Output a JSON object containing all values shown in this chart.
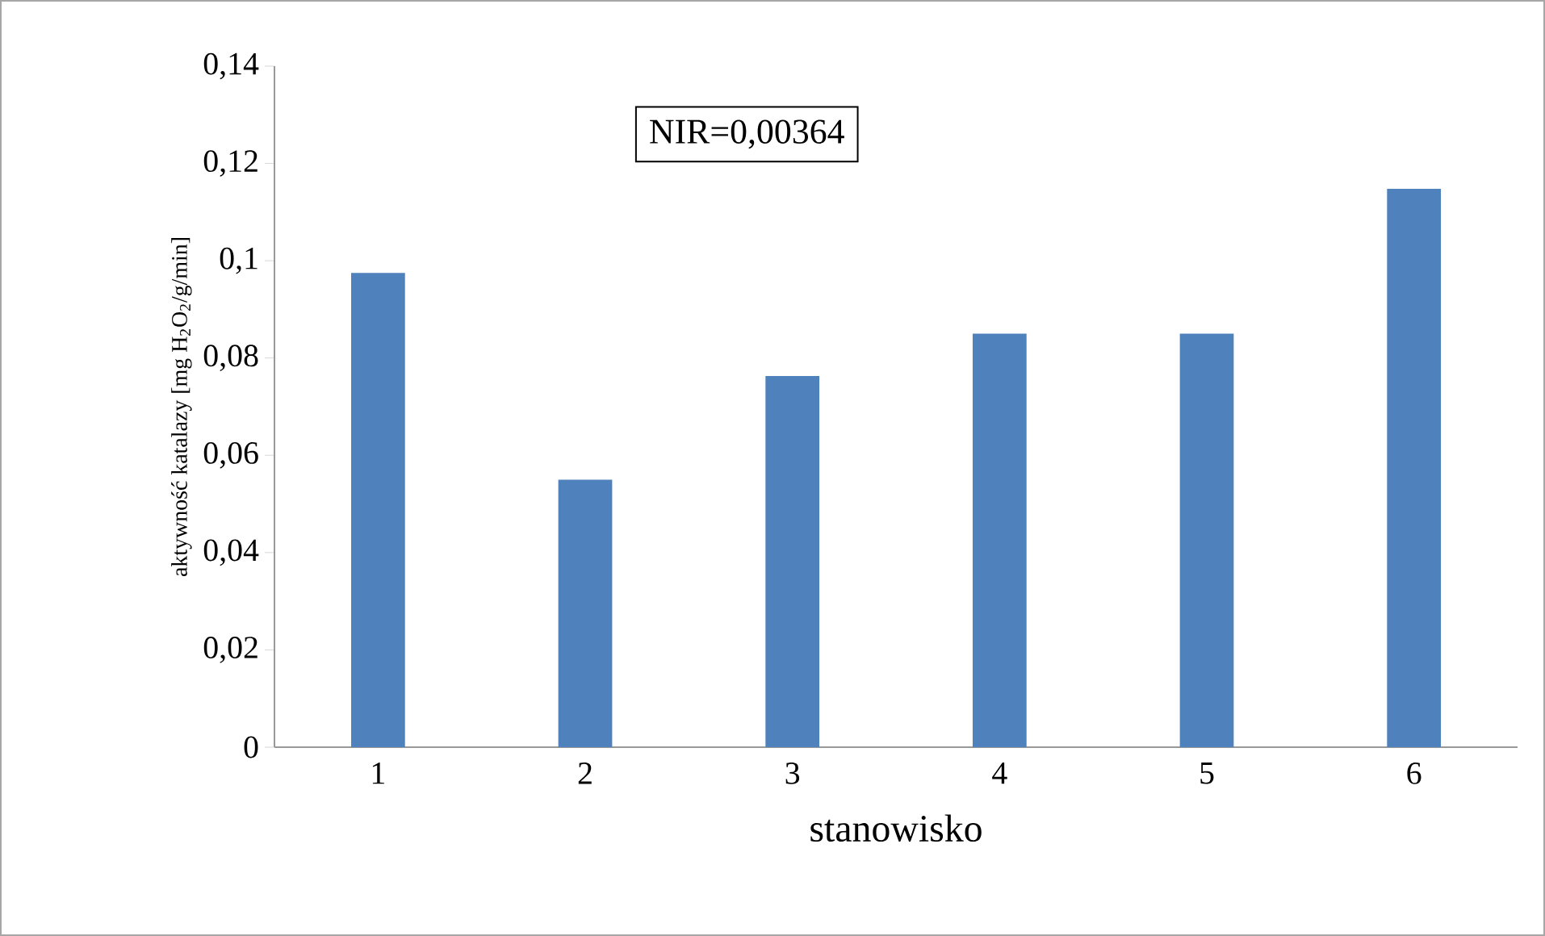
{
  "chart_data": {
    "type": "bar",
    "xlabel": "stanowisko",
    "ylabel": "aktywność katalazy [mg H$_{2}$O$_{2}$/g/min]",
    "annotations": [
      "NIR=0,00364"
    ],
    "categories": [
      "1",
      "2",
      "3",
      "4",
      "5",
      "6"
    ],
    "values": [
      0.0975,
      0.055,
      0.0763,
      0.085,
      0.085,
      0.1148
    ],
    "color": "#4f81bd",
    "ylim": [
      0,
      0.14
    ],
    "yticks": [
      0,
      {
        "value": 0.02,
        "label": "0,02"
      },
      {
        "value": 0.04,
        "label": "0,04"
      },
      {
        "value": 0.06,
        "label": "0,06"
      },
      {
        "value": 0.08,
        "label": "0,08"
      },
      {
        "value": 0.1,
        "label": "0,1"
      },
      {
        "value": 0.12,
        "label": "0,12"
      },
      {
        "value": 0.14,
        "label": "0,14"
      }
    ]
  }
}
